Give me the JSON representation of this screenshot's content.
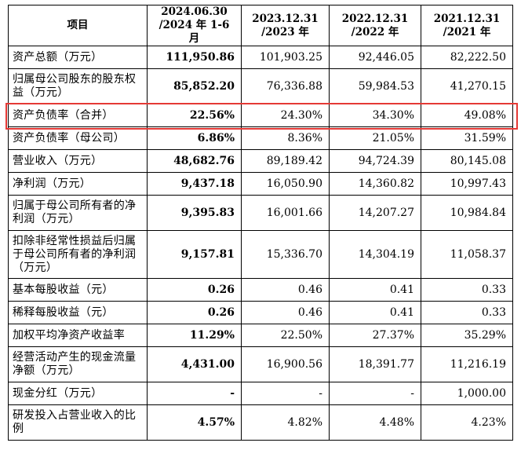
{
  "header": {
    "item": "项目",
    "cols": [
      {
        "l1": "2024.06.30",
        "l2": "/2024 年 1-6 月"
      },
      {
        "l1": "2023.12.31",
        "l2": "/2023 年"
      },
      {
        "l1": "2022.12.31",
        "l2": "/2022 年"
      },
      {
        "l1": "2021.12.31",
        "l2": "/2021 年"
      }
    ]
  },
  "rows": [
    {
      "label": "资产总额（万元）",
      "values": [
        "111,950.86",
        "101,903.25",
        "92,446.05",
        "82,222.50"
      ]
    },
    {
      "label": "归属母公司股东的股东权益（万元）",
      "values": [
        "85,852.20",
        "76,336.88",
        "59,984.53",
        "41,270.15"
      ]
    },
    {
      "label": "资产负债率（合并）",
      "values": [
        "22.56%",
        "24.30%",
        "34.30%",
        "49.08%"
      ],
      "highlighted": true
    },
    {
      "label": "资产负债率（母公司）",
      "values": [
        "6.86%",
        "8.36%",
        "21.05%",
        "31.59%"
      ]
    },
    {
      "label": "营业收入（万元）",
      "values": [
        "48,682.76",
        "89,189.42",
        "94,724.39",
        "80,145.08"
      ]
    },
    {
      "label": "净利润（万元）",
      "values": [
        "9,437.18",
        "16,050.90",
        "14,360.82",
        "10,997.43"
      ]
    },
    {
      "label": "归属于母公司所有者的净利润（万元）",
      "values": [
        "9,395.83",
        "16,001.66",
        "14,207.27",
        "10,984.84"
      ]
    },
    {
      "label": "扣除非经常性损益后归属于母公司所有者的净利润（万元）",
      "values": [
        "9,157.81",
        "15,336.70",
        "14,304.19",
        "11,058.37"
      ]
    },
    {
      "label": "基本每股收益（元）",
      "values": [
        "0.26",
        "0.46",
        "0.41",
        "0.33"
      ]
    },
    {
      "label": "稀释每股收益（元）",
      "values": [
        "0.26",
        "0.46",
        "0.41",
        "0.33"
      ]
    },
    {
      "label": "加权平均净资产收益率",
      "values": [
        "11.29%",
        "22.50%",
        "27.37%",
        "35.29%"
      ]
    },
    {
      "label": "经营活动产生的现金流量净额（万元）",
      "values": [
        "4,431.00",
        "16,900.56",
        "18,391.77",
        "11,216.19"
      ]
    },
    {
      "label": "现金分红（万元）",
      "values": [
        "-",
        "-",
        "-",
        "1,000.00"
      ]
    },
    {
      "label": "研发投入占营业收入的比例",
      "values": [
        "4.57%",
        "4.82%",
        "4.48%",
        "4.23%"
      ]
    }
  ],
  "highlight_color": "#e53935"
}
